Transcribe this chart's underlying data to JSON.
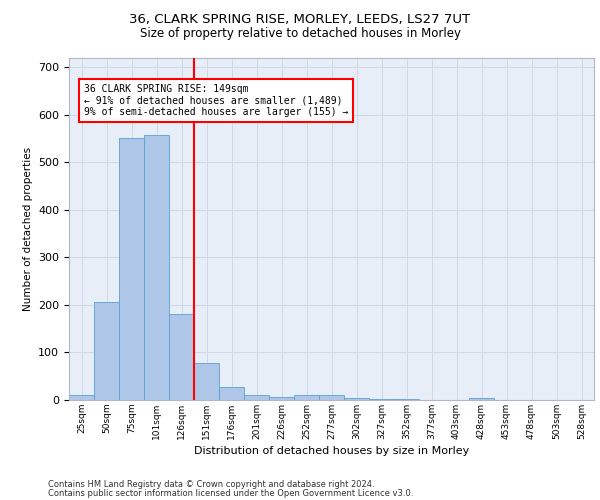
{
  "title1": "36, CLARK SPRING RISE, MORLEY, LEEDS, LS27 7UT",
  "title2": "Size of property relative to detached houses in Morley",
  "xlabel": "Distribution of detached houses by size in Morley",
  "ylabel": "Number of detached properties",
  "categories": [
    "25sqm",
    "50sqm",
    "75sqm",
    "101sqm",
    "126sqm",
    "151sqm",
    "176sqm",
    "201sqm",
    "226sqm",
    "252sqm",
    "277sqm",
    "302sqm",
    "327sqm",
    "352sqm",
    "377sqm",
    "403sqm",
    "428sqm",
    "453sqm",
    "478sqm",
    "503sqm",
    "528sqm"
  ],
  "values": [
    10,
    205,
    550,
    557,
    180,
    78,
    28,
    10,
    6,
    10,
    10,
    5,
    3,
    2,
    0,
    0,
    5,
    0,
    0,
    0,
    0
  ],
  "bar_color": "#aec6e8",
  "bar_edge_color": "#5a9fd4",
  "annotation_text": "36 CLARK SPRING RISE: 149sqm\n← 91% of detached houses are smaller (1,489)\n9% of semi-detached houses are larger (155) →",
  "annotation_box_color": "white",
  "annotation_box_edge_color": "red",
  "vline_color": "red",
  "ylim": [
    0,
    720
  ],
  "yticks": [
    0,
    100,
    200,
    300,
    400,
    500,
    600,
    700
  ],
  "grid_color": "#d0d8e8",
  "background_color": "#e8eef8",
  "footer1": "Contains HM Land Registry data © Crown copyright and database right 2024.",
  "footer2": "Contains public sector information licensed under the Open Government Licence v3.0."
}
